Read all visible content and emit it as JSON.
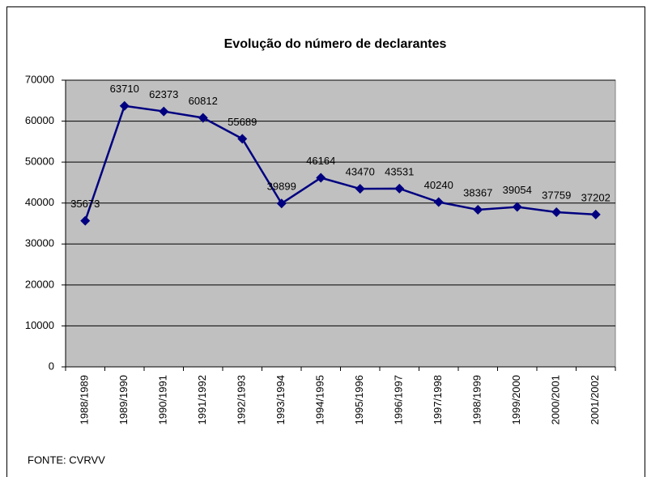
{
  "chart_data": {
    "type": "line",
    "title": "Evolução do número de declarantes",
    "categories": [
      "1988/1989",
      "1989/1990",
      "1990/1991",
      "1991/1992",
      "1992/1993",
      "1993/1994",
      "1994/1995",
      "1995/1996",
      "1996/1997",
      "1997/1998",
      "1998/1999",
      "1999/2000",
      "2000/2001",
      "2001/2002"
    ],
    "values": [
      35673,
      63710,
      62373,
      60812,
      55689,
      39899,
      46164,
      43470,
      43531,
      40240,
      38367,
      39054,
      37759,
      37202
    ],
    "color": "#000080",
    "ylim": [
      0,
      70000
    ],
    "yticks": [
      0,
      10000,
      20000,
      30000,
      40000,
      50000,
      60000,
      70000
    ],
    "grid": true,
    "source": "FONTE: CVRVV"
  }
}
